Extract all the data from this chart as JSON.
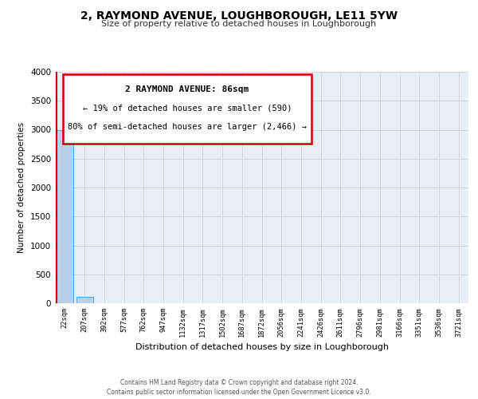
{
  "title": "2, RAYMOND AVENUE, LOUGHBOROUGH, LE11 5YW",
  "subtitle": "Size of property relative to detached houses in Loughborough",
  "xlabel": "Distribution of detached houses by size in Loughborough",
  "ylabel": "Number of detached properties",
  "bar_labels": [
    "22sqm",
    "207sqm",
    "392sqm",
    "577sqm",
    "762sqm",
    "947sqm",
    "1132sqm",
    "1317sqm",
    "1502sqm",
    "1687sqm",
    "1872sqm",
    "2056sqm",
    "2241sqm",
    "2426sqm",
    "2611sqm",
    "2796sqm",
    "2981sqm",
    "3166sqm",
    "3351sqm",
    "3536sqm",
    "3721sqm"
  ],
  "bar_values": [
    2990,
    115,
    0,
    0,
    0,
    0,
    0,
    0,
    0,
    0,
    0,
    0,
    0,
    0,
    0,
    0,
    0,
    0,
    0,
    0,
    0
  ],
  "bar_color": "#b8d0e8",
  "bar_edge_color": "#5b9bd5",
  "ylim": [
    0,
    4000
  ],
  "yticks": [
    0,
    500,
    1000,
    1500,
    2000,
    2500,
    3000,
    3500,
    4000
  ],
  "property_line_color": "#cc0000",
  "annotation_title": "2 RAYMOND AVENUE: 86sqm",
  "annotation_line1": "← 19% of detached houses are smaller (590)",
  "annotation_line2": "80% of semi-detached houses are larger (2,466) →",
  "annotation_box_color": "#cc0000",
  "grid_color": "#d0d8e4",
  "background_color": "#e8eef4",
  "footer_line1": "Contains HM Land Registry data © Crown copyright and database right 2024.",
  "footer_line2": "Contains public sector information licensed under the Open Government Licence v3.0."
}
